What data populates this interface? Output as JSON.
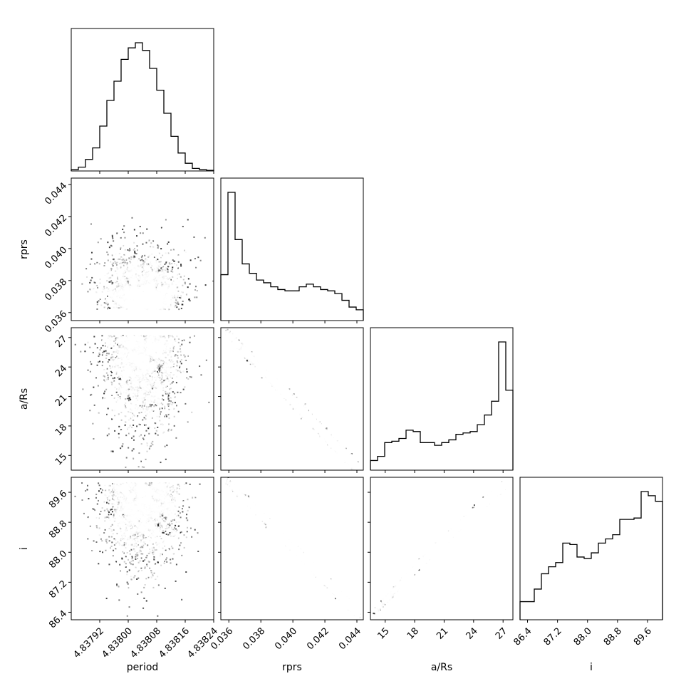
{
  "chart_data": {
    "type": "corner",
    "parameters": [
      "period",
      "rprs",
      "a/Rs",
      "i"
    ],
    "axes": {
      "period": {
        "range": [
          4.83784,
          4.83824
        ],
        "ticks": [
          "4.83792",
          "4.83800",
          "4.83808",
          "4.83816",
          "4.83824"
        ],
        "tick_values": [
          4.83792,
          4.838,
          4.83808,
          4.83816,
          4.83824
        ]
      },
      "rprs": {
        "range": [
          0.0355,
          0.0444
        ],
        "ticks": [
          "0.036",
          "0.038",
          "0.040",
          "0.042",
          "0.044"
        ],
        "tick_values": [
          0.036,
          0.038,
          0.04,
          0.042,
          0.044
        ]
      },
      "a/Rs": {
        "range": [
          13.5,
          28.0
        ],
        "ticks": [
          "15",
          "18",
          "21",
          "24",
          "27"
        ],
        "tick_values": [
          15,
          18,
          21,
          24,
          27
        ]
      },
      "i": {
        "range": [
          86.2,
          90.0
        ],
        "ticks": [
          "86.4",
          "87.2",
          "88.0",
          "88.8",
          "89.6"
        ],
        "tick_values": [
          86.4,
          87.2,
          88.0,
          88.8,
          89.6
        ]
      }
    },
    "histograms": {
      "period": [
        0.01,
        0.03,
        0.09,
        0.18,
        0.35,
        0.55,
        0.7,
        0.87,
        0.96,
        1.0,
        0.94,
        0.8,
        0.63,
        0.45,
        0.27,
        0.14,
        0.06,
        0.02,
        0.01,
        0.005
      ],
      "rprs": [
        0.34,
        0.95,
        0.6,
        0.42,
        0.35,
        0.3,
        0.28,
        0.25,
        0.23,
        0.22,
        0.22,
        0.25,
        0.27,
        0.25,
        0.23,
        0.22,
        0.2,
        0.15,
        0.1,
        0.08
      ],
      "a/Rs": [
        0.07,
        0.1,
        0.2,
        0.21,
        0.23,
        0.29,
        0.28,
        0.2,
        0.2,
        0.18,
        0.2,
        0.22,
        0.26,
        0.27,
        0.28,
        0.33,
        0.4,
        0.5,
        0.93,
        0.58
      ],
      "i": [
        0.13,
        0.13,
        0.22,
        0.33,
        0.38,
        0.41,
        0.55,
        0.54,
        0.45,
        0.44,
        0.48,
        0.55,
        0.58,
        0.61,
        0.72,
        0.72,
        0.73,
        0.92,
        0.89,
        0.85
      ]
    }
  }
}
